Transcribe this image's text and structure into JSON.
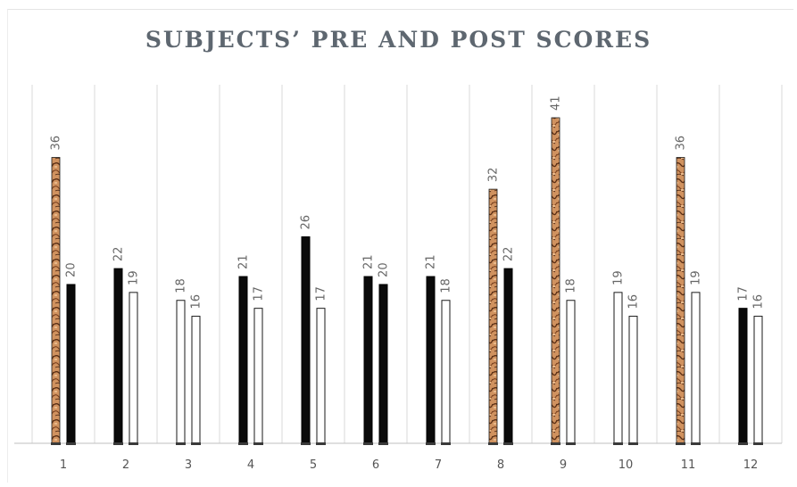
{
  "chart_data": {
    "type": "bar",
    "title": "SUBJECTS’ PRE AND POST SCORES",
    "xlabel": "",
    "ylabel": "",
    "categories": [
      "1",
      "2",
      "3",
      "4",
      "5",
      "6",
      "7",
      "8",
      "9",
      "10",
      "11",
      "12"
    ],
    "ylim": [
      0,
      41
    ],
    "grid": "vertical",
    "legend": "none",
    "series": [
      {
        "values": [
          36,
          22,
          18,
          21,
          26,
          21,
          21,
          32,
          41,
          19,
          36,
          17
        ],
        "fills": [
          "textured",
          "black",
          "white",
          "black",
          "black",
          "black",
          "black",
          "textured",
          "textured",
          "white",
          "textured",
          "black"
        ]
      },
      {
        "values": [
          20,
          19,
          16,
          17,
          17,
          20,
          18,
          22,
          18,
          16,
          19,
          16
        ],
        "fills": [
          "black",
          "white",
          "white",
          "white",
          "white",
          "black",
          "white",
          "black",
          "white",
          "white",
          "white",
          "white"
        ]
      }
    ],
    "colors": {
      "textured": "#c98a5c",
      "textured_dark": "#5a2e14",
      "black": "#0a0a0a",
      "white": "#ffffff",
      "grid": "#d9d9d9",
      "axis": "#bfbfbf"
    }
  }
}
